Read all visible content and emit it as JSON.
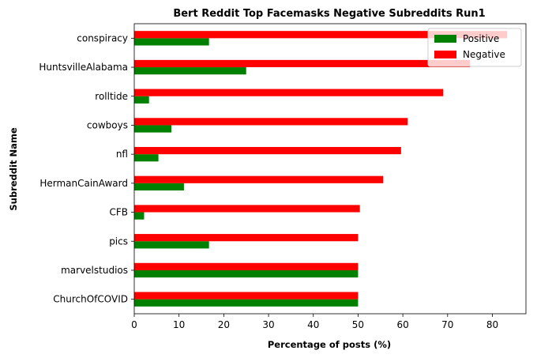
{
  "chart_data": {
    "type": "bar",
    "orientation": "horizontal",
    "title": "Bert Reddit Top Facemasks Negative Subreddits Run1",
    "xlabel": "Percentage of posts (%)",
    "ylabel": "Subreddit Name",
    "categories": [
      "ChurchOfCOVID",
      "marvelstudios",
      "pics",
      "CFB",
      "HermanCainAward",
      "nfl",
      "cowboys",
      "rolltide",
      "HuntsvilleAlabama",
      "conspiracy"
    ],
    "series": [
      {
        "name": "Positive",
        "color": "#008000",
        "values": [
          50,
          50,
          16.7,
          2.2,
          11.1,
          5.4,
          8.3,
          3.3,
          25,
          16.7
        ]
      },
      {
        "name": "Negative",
        "color": "#ff0000",
        "values": [
          50,
          50,
          50,
          50.4,
          55.6,
          59.6,
          61.1,
          69,
          75,
          83.3
        ]
      }
    ],
    "xlim": [
      0,
      87.5
    ],
    "xticks": [
      0,
      10,
      20,
      30,
      40,
      50,
      60,
      70,
      80
    ],
    "grid": false,
    "legend_position": "top-right"
  }
}
